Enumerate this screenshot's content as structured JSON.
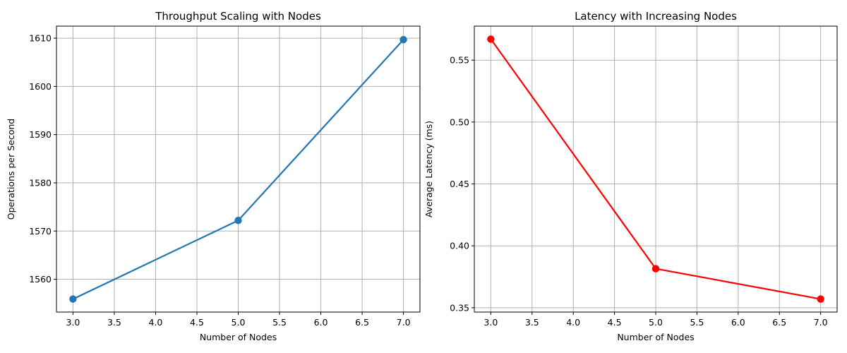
{
  "chart_data": [
    {
      "type": "line",
      "title": "Throughput Scaling with Nodes",
      "xlabel": "Number of Nodes",
      "ylabel": "Operations per Second",
      "x": [
        3,
        5,
        7
      ],
      "series": [
        {
          "values": [
            1555.9,
            1572.2,
            1609.7
          ],
          "color": "#1f77b4",
          "marker": "circle"
        }
      ],
      "xlim": [
        2.8,
        7.2
      ],
      "ylim": [
        1553.2,
        1612.5
      ],
      "xticks": [
        3.0,
        3.5,
        4.0,
        4.5,
        5.0,
        5.5,
        6.0,
        6.5,
        7.0
      ],
      "xtick_labels": [
        "3.0",
        "3.5",
        "4.0",
        "4.5",
        "5.0",
        "5.5",
        "6.0",
        "6.5",
        "7.0"
      ],
      "yticks": [
        1560,
        1570,
        1580,
        1590,
        1600,
        1610
      ],
      "ytick_labels": [
        "1560",
        "1570",
        "1580",
        "1590",
        "1600",
        "1610"
      ],
      "grid": true
    },
    {
      "type": "line",
      "title": "Latency with Increasing Nodes",
      "xlabel": "Number of Nodes",
      "ylabel": "Average Latency (ms)",
      "x": [
        3,
        5,
        7
      ],
      "series": [
        {
          "values": [
            0.567,
            0.3815,
            0.357
          ],
          "color": "#ff0000",
          "marker": "circle"
        }
      ],
      "xlim": [
        2.8,
        7.2
      ],
      "ylim": [
        0.3465,
        0.5775
      ],
      "xticks": [
        3.0,
        3.5,
        4.0,
        4.5,
        5.0,
        5.5,
        6.0,
        6.5,
        7.0
      ],
      "xtick_labels": [
        "3.0",
        "3.5",
        "4.0",
        "4.5",
        "5.0",
        "5.5",
        "6.0",
        "6.5",
        "7.0"
      ],
      "yticks": [
        0.35,
        0.4,
        0.45,
        0.5,
        0.55
      ],
      "ytick_labels": [
        "0.35",
        "0.40",
        "0.45",
        "0.50",
        "0.55"
      ],
      "grid": true
    }
  ]
}
